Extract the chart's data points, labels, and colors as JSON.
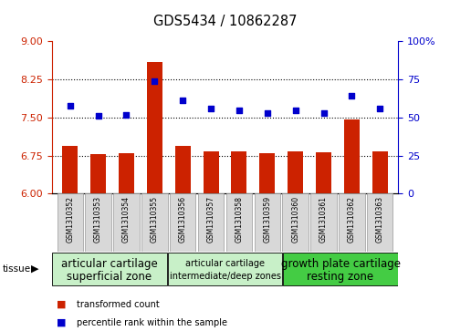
{
  "title": "GDS5434 / 10862287",
  "samples": [
    "GSM1310352",
    "GSM1310353",
    "GSM1310354",
    "GSM1310355",
    "GSM1310356",
    "GSM1310357",
    "GSM1310358",
    "GSM1310359",
    "GSM1310360",
    "GSM1310361",
    "GSM1310362",
    "GSM1310363"
  ],
  "bar_values": [
    6.94,
    6.77,
    6.79,
    8.6,
    6.94,
    6.84,
    6.84,
    6.8,
    6.83,
    6.81,
    7.47,
    6.83
  ],
  "dot_values": [
    58,
    51,
    52,
    74,
    61,
    56,
    55,
    53,
    55,
    53,
    64,
    56
  ],
  "bar_color": "#cc2200",
  "dot_color": "#0000cc",
  "ylim_left": [
    6,
    9
  ],
  "ylim_right": [
    0,
    100
  ],
  "yticks_left": [
    6,
    6.75,
    7.5,
    8.25,
    9
  ],
  "yticks_right": [
    0,
    25,
    50,
    75,
    100
  ],
  "hlines": [
    6.75,
    7.5,
    8.25
  ],
  "group_configs": [
    {
      "start": 0,
      "end": 4,
      "label_line1": "articular cartilage",
      "label_line2": "superficial zone",
      "color": "#c8f0c8",
      "fontsize": 8.5
    },
    {
      "start": 4,
      "end": 8,
      "label_line1": "articular cartilage",
      "label_line2": "intermediate/deep zones",
      "color": "#c8f0c8",
      "fontsize": 7
    },
    {
      "start": 8,
      "end": 12,
      "label_line1": "growth plate cartilage",
      "label_line2": "resting zone",
      "color": "#44cc44",
      "fontsize": 8.5
    }
  ],
  "legend_bar": "transformed count",
  "legend_dot": "percentile rank within the sample"
}
